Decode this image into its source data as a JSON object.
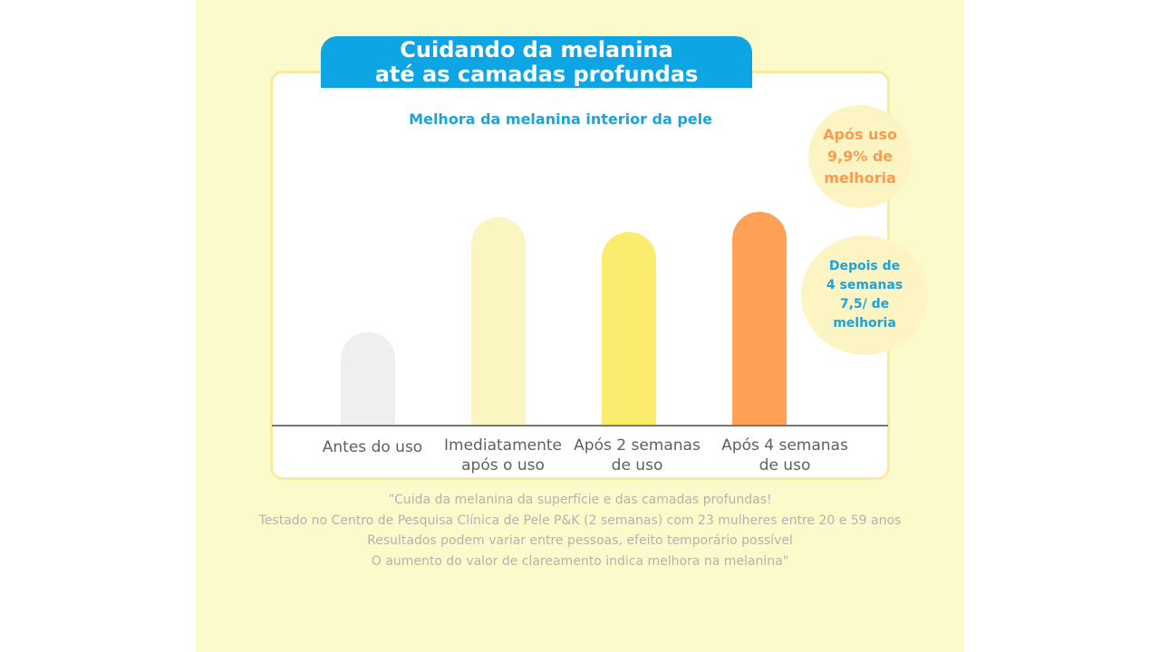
{
  "header": {
    "title_line1": "Cuidando da melanina",
    "title_line2": "até as camadas profundas"
  },
  "callouts": {
    "first": {
      "line1": "Após uso",
      "line2": "9,9% de",
      "line3": "melhoria"
    },
    "second": {
      "line1": "Depois de",
      "line2": "4 semanas",
      "line3": "7,5/ de",
      "line4": "melhoria"
    }
  },
  "chart_data": {
    "type": "bar",
    "title": "Melhora da melanina interior da pele",
    "categories": [
      [
        "Antes do uso"
      ],
      [
        "Imediatamente",
        "após o uso"
      ],
      [
        "Após 2 semanas",
        "de uso"
      ],
      [
        "Após 4 semanas",
        "de uso"
      ]
    ],
    "values": [
      88,
      196,
      182,
      201
    ],
    "value_unit": "relative bar height (no axis printed)",
    "bar_colors": [
      "#efefef",
      "#fbf5c2",
      "#fbec70",
      "#fea156"
    ],
    "ylim": [
      0,
      240
    ],
    "grid": false,
    "legend": "none"
  },
  "footnote": {
    "line1": "“Cuida da melanina da superfície e das camadas profundas!",
    "line2": "Testado no Centro de Pesquisa Clínica de Pele P&K (2 semanas) com 23 mulheres entre 20 e 59 anos",
    "line3": "Resultados podem variar entre pessoas, efeito temporário possível",
    "line4": "O aumento do valor de clareamento indica melhora na melanina\""
  },
  "colors": {
    "background": "#fbfacb",
    "banner": "#0ea5e4",
    "accent_blue": "#1aa3dc",
    "accent_orange": "#fa9c50",
    "bubble": "#fdf4c4",
    "axis": "#777777"
  }
}
